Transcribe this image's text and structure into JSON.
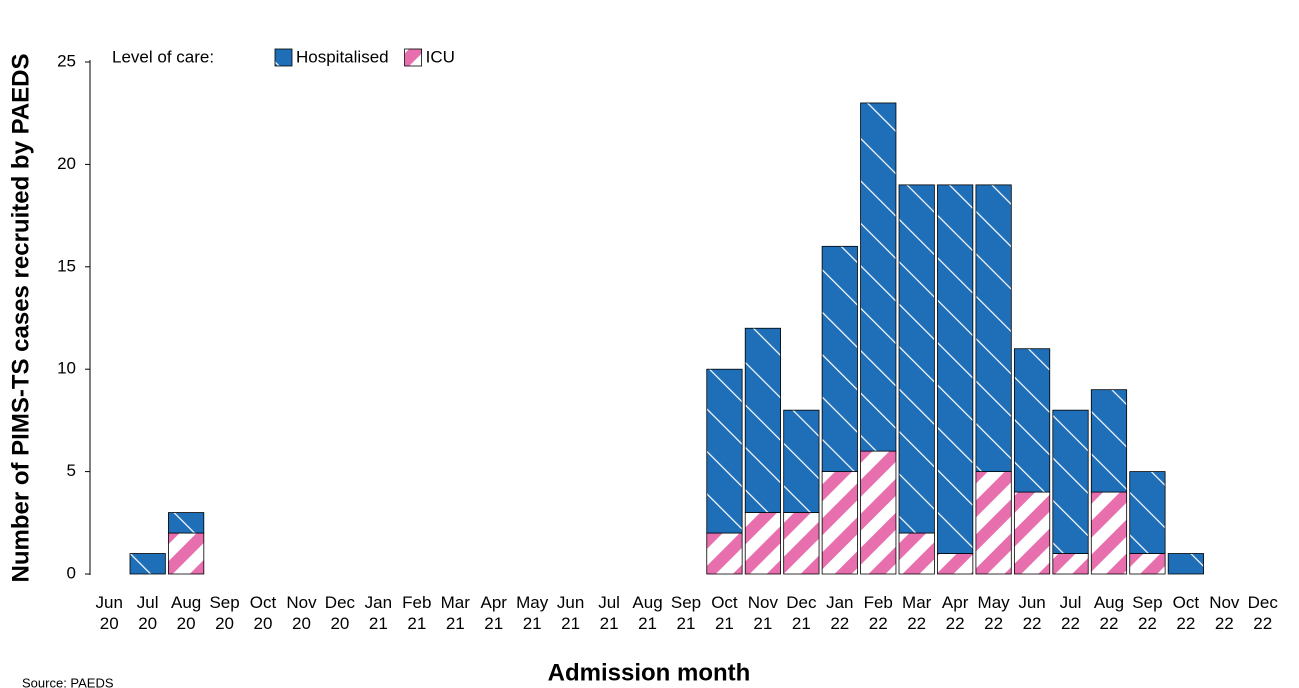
{
  "chart_data": {
    "type": "bar",
    "stacked": true,
    "y_label": "Number of PIMS-TS cases recruited by PAEDS",
    "x_label": "Admission month",
    "legend_title": "Level of care:",
    "source": "Source: PAEDS",
    "categories": [
      "Jun 20",
      "Jul 20",
      "Aug 20",
      "Sep 20",
      "Oct 20",
      "Nov 20",
      "Dec 20",
      "Jan 21",
      "Feb 21",
      "Mar 21",
      "Apr 21",
      "May 21",
      "Jun 21",
      "Jul 21",
      "Aug 21",
      "Sep 21",
      "Oct 21",
      "Nov 21",
      "Dec 21",
      "Jan 22",
      "Feb 22",
      "Mar 22",
      "Apr 22",
      "May 22",
      "Jun 22",
      "Jul 22",
      "Aug 22",
      "Sep 22",
      "Oct 22",
      "Nov 22",
      "Dec 22"
    ],
    "series": [
      {
        "name": "ICU",
        "color": "#e86fae",
        "values": [
          0,
          0,
          2,
          0,
          0,
          0,
          0,
          0,
          0,
          0,
          0,
          0,
          0,
          0,
          0,
          0,
          2,
          3,
          3,
          5,
          6,
          2,
          1,
          5,
          4,
          1,
          4,
          1,
          0,
          0,
          0
        ]
      },
      {
        "name": "Hospitalised",
        "color": "#1f6fb8",
        "values": [
          0,
          1,
          1,
          0,
          0,
          0,
          0,
          0,
          0,
          0,
          0,
          0,
          0,
          0,
          0,
          0,
          8,
          9,
          5,
          11,
          17,
          17,
          18,
          14,
          7,
          7,
          5,
          4,
          1,
          0,
          0
        ]
      }
    ],
    "ylim": [
      0,
      25
    ],
    "yticks": [
      0,
      5,
      10,
      15,
      20,
      25
    ],
    "grid": false
  }
}
